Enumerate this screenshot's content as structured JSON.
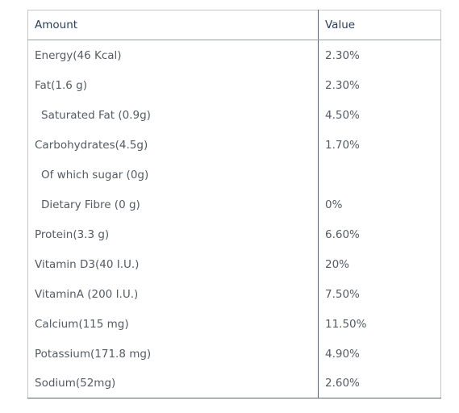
{
  "table": {
    "headers": [
      "Amount",
      "Value"
    ],
    "rows": [
      {
        "amount": "Energy(46 Kcal)",
        "value": "2.30%"
      },
      {
        "amount": "Fat(1.6 g)",
        "value": "2.30%"
      },
      {
        "amount": "Saturated Fat (0.9g)",
        "value": "4.50%",
        "indent": true
      },
      {
        "amount": "Carbohydrates(4.5g)",
        "value": "1.70%"
      },
      {
        "amount": "Of which sugar (0g)",
        "value": "",
        "indent": true
      },
      {
        "amount": "Dietary Fibre (0 g)",
        "value": "0%",
        "indent": true
      },
      {
        "amount": "Protein(3.3 g)",
        "value": "6.60%"
      },
      {
        "amount": "Vitamin D3(40 I.U.)",
        "value": "20%"
      },
      {
        "amount": "VitaminA (200 I.U.)",
        "value": "7.50%"
      },
      {
        "amount": "Calcium(115 mg)",
        "value": "11.50%"
      },
      {
        "amount": "Potassium(171.8 mg)",
        "value": "4.90%"
      },
      {
        "amount": "Sodium(52mg)",
        "value": "2.60%"
      }
    ]
  },
  "colors": {
    "header_text": "#2c3e58",
    "cell_text": "#555b62",
    "border": "#5b6470"
  }
}
